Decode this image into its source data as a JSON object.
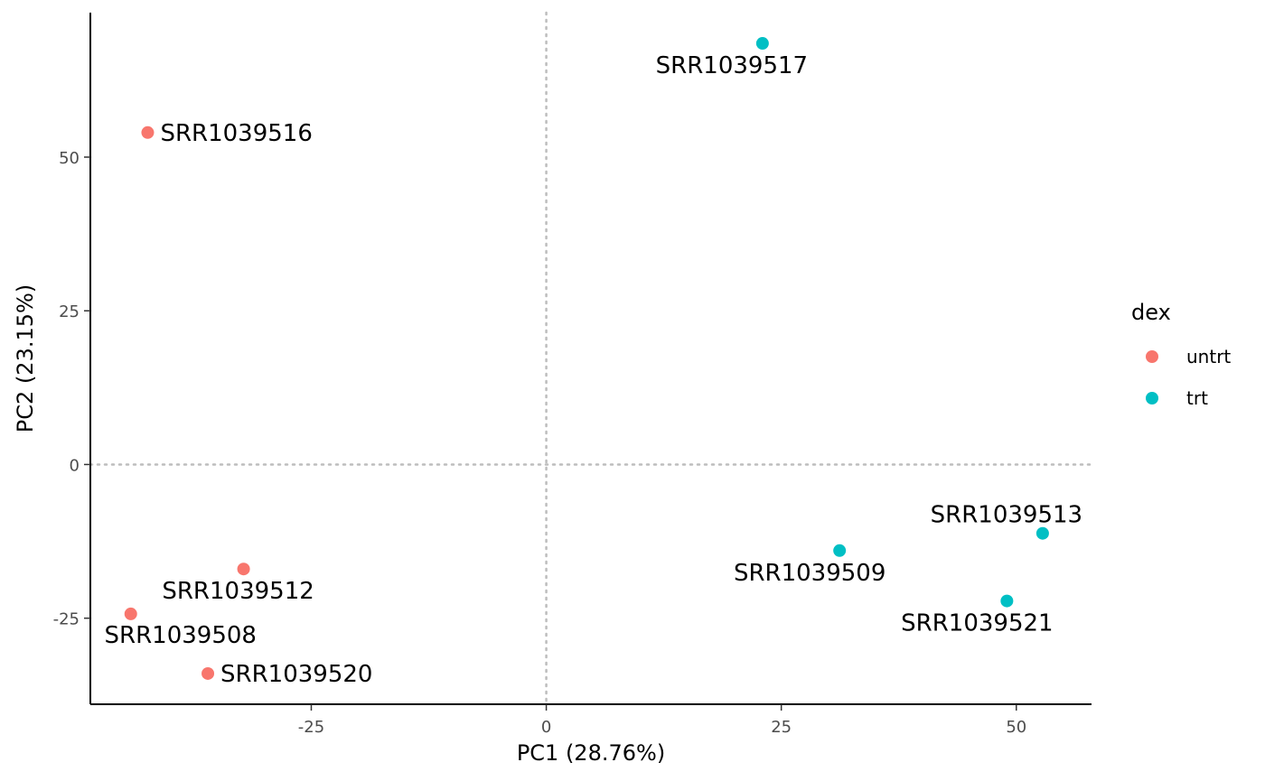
{
  "chart_data": {
    "type": "scatter",
    "title": "",
    "xlabel": "PC1 (28.76%)",
    "ylabel": "PC2 (23.15%)",
    "xlim": [
      -48.5,
      58
    ],
    "ylim": [
      -39,
      73.5
    ],
    "xticks": [
      -25,
      0,
      25,
      50
    ],
    "yticks": [
      -25,
      0,
      25,
      50
    ],
    "xtick_labels": [
      "-25",
      "0",
      "25",
      "50"
    ],
    "ytick_labels": [
      "-25",
      "0",
      "25",
      "50"
    ],
    "reference_lines": {
      "x": 0,
      "y": 0,
      "style": "dotted"
    },
    "grid": false,
    "legend": {
      "title": "dex",
      "placement": "right",
      "entries": [
        {
          "name": "untrt",
          "color": "#F8766D"
        },
        {
          "name": "trt",
          "color": "#00BFC4"
        }
      ]
    },
    "series": [
      {
        "name": "untrt",
        "color": "#F8766D",
        "points": [
          {
            "label": "SRR1039516",
            "x": -42.4,
            "y": 54.0
          },
          {
            "label": "SRR1039512",
            "x": -32.2,
            "y": -17.0
          },
          {
            "label": "SRR1039508",
            "x": -44.2,
            "y": -24.3
          },
          {
            "label": "SRR1039520",
            "x": -36.0,
            "y": -34.0
          }
        ]
      },
      {
        "name": "trt",
        "color": "#00BFC4",
        "points": [
          {
            "label": "SRR1039517",
            "x": 23.0,
            "y": 68.5
          },
          {
            "label": "SRR1039509",
            "x": 31.2,
            "y": -14.0
          },
          {
            "label": "SRR1039513",
            "x": 52.8,
            "y": -11.2
          },
          {
            "label": "SRR1039521",
            "x": 49.0,
            "y": -22.2
          }
        ]
      }
    ]
  }
}
